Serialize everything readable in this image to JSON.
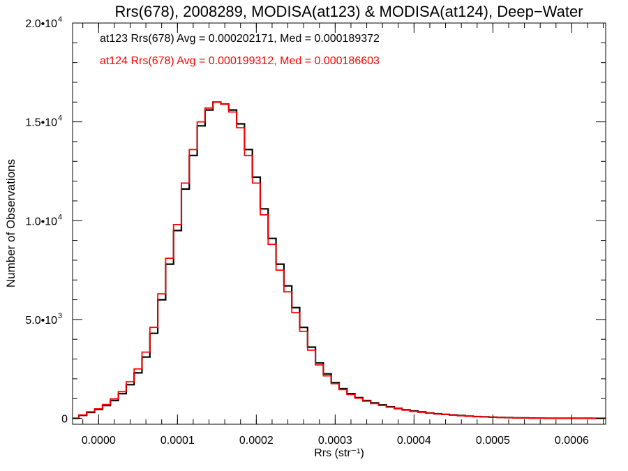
{
  "chart_data": {
    "type": "line",
    "title": "Rrs(678), 2008289, MODISA(at123) & MODISA(at124), Deep−Water",
    "xlabel": "Rrs (str⁻¹)",
    "ylabel": "Number of Observations",
    "xlim": [
      -3.3e-05,
      0.000643
    ],
    "ylim": [
      -300,
      20000
    ],
    "x_ticks": [
      {
        "value": 0.0,
        "label": "0.0000"
      },
      {
        "value": 0.0001,
        "label": "0.0001"
      },
      {
        "value": 0.0002,
        "label": "0.0002"
      },
      {
        "value": 0.0003,
        "label": "0.0003"
      },
      {
        "value": 0.0004,
        "label": "0.0004"
      },
      {
        "value": 0.0005,
        "label": "0.0005"
      },
      {
        "value": 0.0006,
        "label": "0.0006"
      }
    ],
    "y_ticks": [
      {
        "value": 0,
        "label": "0",
        "exp": ""
      },
      {
        "value": 5000,
        "label": "5.0•10",
        "exp": "3"
      },
      {
        "value": 10000,
        "label": "1.0•10",
        "exp": "4"
      },
      {
        "value": 15000,
        "label": "1.5•10",
        "exp": "4"
      },
      {
        "value": 20000,
        "label": "2.0•10",
        "exp": "4"
      }
    ],
    "annotations": [
      {
        "text": "at123 Rrs(678) Avg = 0.000202171, Med = 0.000189372",
        "color": "#000000"
      },
      {
        "text": "at124 Rrs(678) Avg = 0.000199312, Med = 0.000186603",
        "color": "#ff0000"
      }
    ],
    "grid": false,
    "series": [
      {
        "color": "#000000",
        "x": [
          -3.3e-05,
          -2.5e-05,
          -1.5e-05,
          -5e-06,
          5e-06,
          1.5e-05,
          2.5e-05,
          3.5e-05,
          4.5e-05,
          5.5e-05,
          6.5e-05,
          7.5e-05,
          8.5e-05,
          9.5e-05,
          0.000105,
          0.000115,
          0.000125,
          0.000135,
          0.000145,
          0.000155,
          0.000165,
          0.000175,
          0.000185,
          0.000195,
          0.000205,
          0.000215,
          0.000225,
          0.000235,
          0.000245,
          0.000255,
          0.000265,
          0.000275,
          0.000285,
          0.000295,
          0.000305,
          0.000315,
          0.000325,
          0.000335,
          0.000345,
          0.000355,
          0.000365,
          0.000375,
          0.000385,
          0.000395,
          0.000405,
          0.000415,
          0.000425,
          0.000435,
          0.000445,
          0.000455,
          0.000465,
          0.000475,
          0.000485,
          0.000495,
          0.000505,
          0.000515,
          0.000525,
          0.000535,
          0.000545,
          0.000555,
          0.000565,
          0.000575,
          0.000585,
          0.000595,
          0.000605,
          0.000615,
          0.000625,
          0.000635,
          0.000643
        ],
        "y": [
          0,
          150,
          300,
          450,
          650,
          900,
          1250,
          1700,
          2300,
          3100,
          4300,
          6000,
          7800,
          9500,
          11600,
          13300,
          14800,
          15600,
          16000,
          15900,
          15600,
          14900,
          13600,
          12200,
          10600,
          9100,
          7800,
          6700,
          5600,
          4600,
          3600,
          2800,
          2250,
          1800,
          1500,
          1250,
          1050,
          900,
          780,
          680,
          580,
          500,
          430,
          370,
          320,
          270,
          230,
          200,
          170,
          140,
          110,
          90,
          75,
          60,
          45,
          35,
          25,
          20,
          15,
          10,
          8,
          6,
          5,
          4,
          3,
          2,
          1,
          0,
          0
        ]
      },
      {
        "color": "#ff0000",
        "x": [
          -3.3e-05,
          -2.5e-05,
          -1.5e-05,
          -5e-06,
          5e-06,
          1.5e-05,
          2.5e-05,
          3.5e-05,
          4.5e-05,
          5.5e-05,
          6.5e-05,
          7.5e-05,
          8.5e-05,
          9.5e-05,
          0.000105,
          0.000115,
          0.000125,
          0.000135,
          0.000145,
          0.000155,
          0.000165,
          0.000175,
          0.000185,
          0.000195,
          0.000205,
          0.000215,
          0.000225,
          0.000235,
          0.000245,
          0.000255,
          0.000265,
          0.000275,
          0.000285,
          0.000295,
          0.000305,
          0.000315,
          0.000325,
          0.000335,
          0.000345,
          0.000355,
          0.000365,
          0.000375,
          0.000385,
          0.000395,
          0.000405,
          0.000415,
          0.000425,
          0.000435,
          0.000445,
          0.000455,
          0.000465,
          0.000475,
          0.000485,
          0.000495,
          0.000505,
          0.000515,
          0.000525,
          0.000535,
          0.000545,
          0.000555,
          0.000565,
          0.000575,
          0.000585,
          0.000595,
          0.000605,
          0.000615,
          0.000625,
          0.000635,
          0.000643
        ],
        "y": [
          0,
          170,
          330,
          480,
          700,
          980,
          1350,
          1850,
          2500,
          3350,
          4600,
          6300,
          8100,
          9800,
          11900,
          13600,
          15000,
          15700,
          16000,
          15900,
          15500,
          14700,
          13300,
          11900,
          10300,
          8800,
          7500,
          6400,
          5350,
          4400,
          3450,
          2700,
          2150,
          1750,
          1450,
          1200,
          1020,
          870,
          750,
          650,
          560,
          480,
          410,
          350,
          300,
          260,
          220,
          190,
          160,
          130,
          105,
          85,
          70,
          55,
          42,
          32,
          24,
          18,
          13,
          9,
          7,
          5,
          4,
          3,
          2,
          1,
          1,
          0,
          0
        ]
      }
    ]
  }
}
